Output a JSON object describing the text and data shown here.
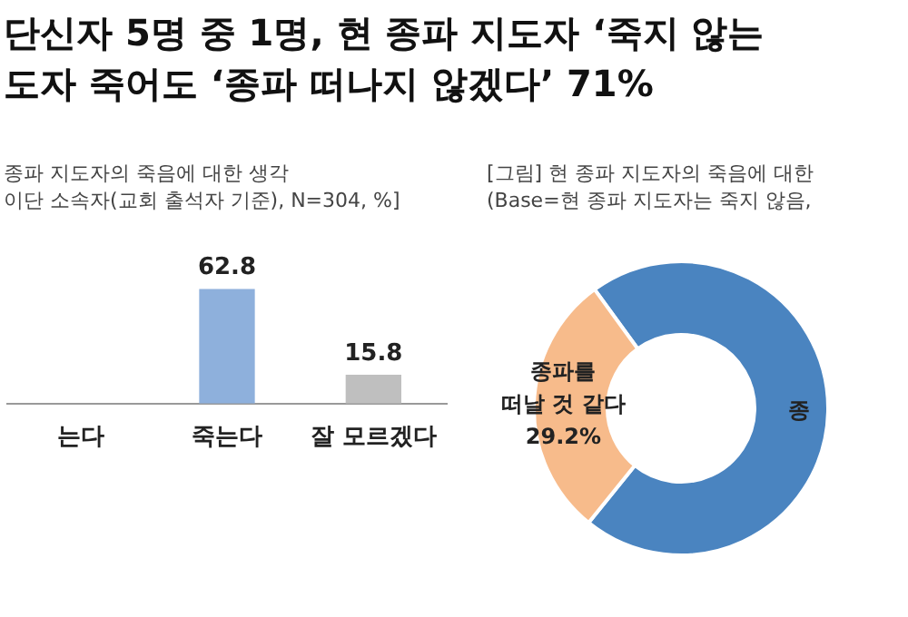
{
  "chart_data": [
    {
      "type": "bar",
      "title": "단신자 5명 중 1명, 현 종파 지도자 ‘죽지 않는\n도자 죽어도 ‘종파 떠나지 않겠다’ 71%",
      "subtitle": "종파 지도자의 죽음에 대한 생각\n이단 소속자(교회 출석자 기준), N=304, %]",
      "categories": [
        "는다",
        "죽는다",
        "잘 모르겠다"
      ],
      "values": [
        null,
        62.8,
        15.8
      ],
      "colors": [
        null,
        "#8eb0dc",
        "#bfbfbf"
      ],
      "data_labels": true
    },
    {
      "type": "donut",
      "subtitle": "[그림] 현 종파 지도자의 죽음에 대한\n(Base=현 종파 지도자는 죽지 않음,",
      "categories": [
        "종",
        "종파를\n떠날 것 같다"
      ],
      "values": [
        70.8,
        29.2
      ],
      "colors": [
        "#4a84c0",
        "#f7bb8b"
      ],
      "value_labels": [
        null,
        "29.2%"
      ]
    }
  ]
}
